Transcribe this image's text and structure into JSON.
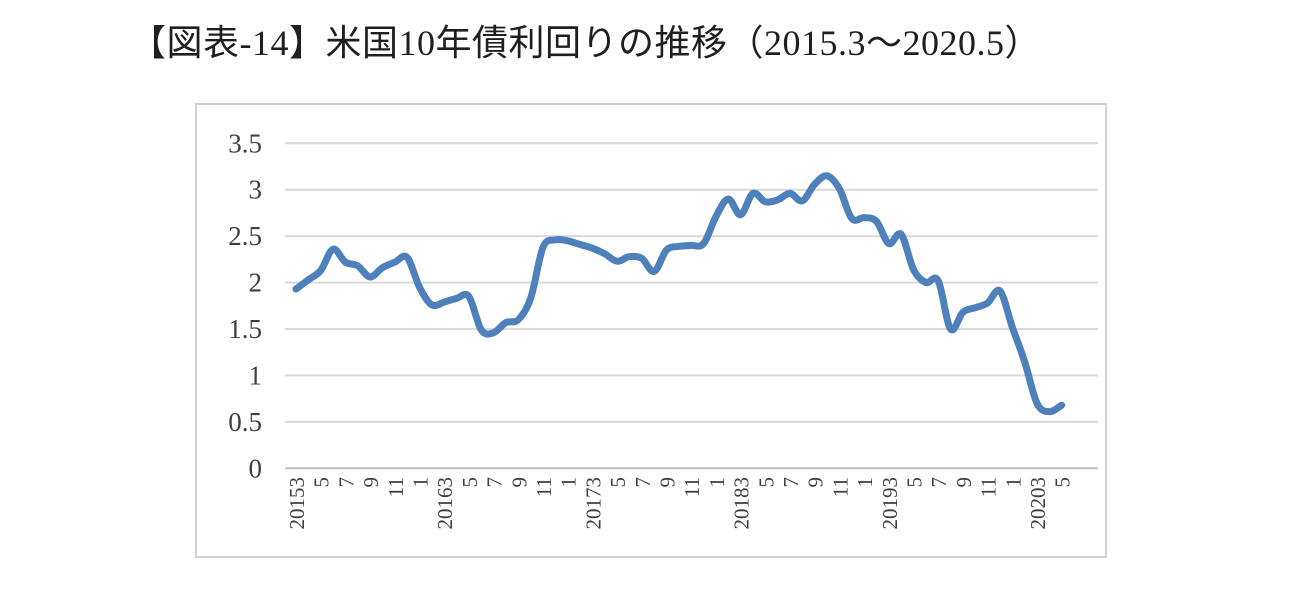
{
  "page": {
    "background": "#FFFFFF"
  },
  "title": "【図表-14】米国10年債利回りの推移（2015.3～2020.5）",
  "chart_data": {
    "type": "line",
    "title": "米国10年債利回りの推移",
    "period_label": "2015.3～2020.5",
    "xlabel": "",
    "ylabel": "",
    "ylim": [
      0,
      3.5
    ],
    "ytick_step": 0.5,
    "grid": true,
    "legend": "none",
    "smooth_line": true,
    "x": [
      "2015.3",
      "2015.4",
      "2015.5",
      "2015.6",
      "2015.7",
      "2015.8",
      "2015.9",
      "2015.10",
      "2015.11",
      "2015.12",
      "2016.1",
      "2016.2",
      "2016.3",
      "2016.4",
      "2016.5",
      "2016.6",
      "2016.7",
      "2016.8",
      "2016.9",
      "2016.10",
      "2016.11",
      "2016.12",
      "2017.1",
      "2017.2",
      "2017.3",
      "2017.4",
      "2017.5",
      "2017.6",
      "2017.7",
      "2017.8",
      "2017.9",
      "2017.10",
      "2017.11",
      "2017.12",
      "2018.1",
      "2018.2",
      "2018.3",
      "2018.4",
      "2018.5",
      "2018.6",
      "2018.7",
      "2018.8",
      "2018.9",
      "2018.10",
      "2018.11",
      "2018.12",
      "2019.1",
      "2019.2",
      "2019.3",
      "2019.4",
      "2019.5",
      "2019.6",
      "2019.7",
      "2019.8",
      "2019.9",
      "2019.10",
      "2019.11",
      "2019.12",
      "2020.1",
      "2020.2",
      "2020.3",
      "2020.4",
      "2020.5"
    ],
    "series": [
      {
        "name": "米国10年債利回り",
        "values": [
          1.93,
          2.03,
          2.13,
          2.36,
          2.22,
          2.18,
          2.06,
          2.16,
          2.22,
          2.27,
          1.95,
          1.76,
          1.79,
          1.83,
          1.85,
          1.49,
          1.46,
          1.57,
          1.6,
          1.83,
          2.38,
          2.46,
          2.45,
          2.41,
          2.37,
          2.31,
          2.23,
          2.28,
          2.26,
          2.12,
          2.35,
          2.39,
          2.4,
          2.42,
          2.71,
          2.9,
          2.73,
          2.96,
          2.87,
          2.89,
          2.96,
          2.88,
          3.06,
          3.15,
          3.01,
          2.69,
          2.7,
          2.66,
          2.42,
          2.52,
          2.14,
          2.0,
          2.02,
          1.5,
          1.68,
          1.73,
          1.78,
          1.91,
          1.52,
          1.15,
          0.7,
          0.61,
          0.68
        ]
      }
    ],
    "x_tick_labels": [
      "20153",
      "5",
      "7",
      "9",
      "11",
      "1",
      "20163",
      "5",
      "7",
      "9",
      "11",
      "1",
      "20173",
      "5",
      "7",
      "9",
      "11",
      "1",
      "20183",
      "5",
      "7",
      "9",
      "11",
      "1",
      "20193",
      "5",
      "7",
      "9",
      "11",
      "1",
      "20203",
      "5"
    ],
    "y_tick_labels": [
      "3.5",
      "3",
      "2.5",
      "2",
      "1.5",
      "1",
      "0.5",
      "0"
    ],
    "colors": {
      "line": "#4E80BC",
      "gridline": "#D9D9D9",
      "zero_axis": "#BFBFBF",
      "frame_border": "#D2D2D2",
      "tick_text": "#3F3F3F",
      "title_text": "#1F1F1F"
    }
  }
}
